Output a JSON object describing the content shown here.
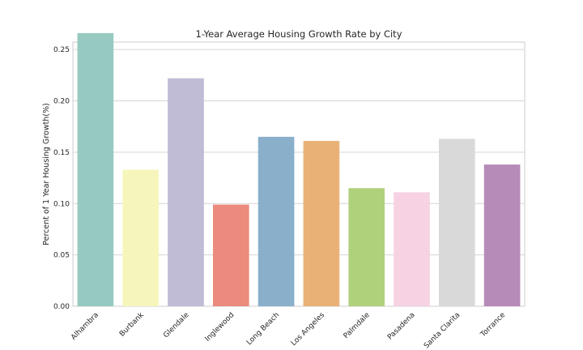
{
  "chart_data": {
    "type": "bar",
    "title": "1-Year Average Housing Growth Rate by City",
    "xlabel": "",
    "ylabel": "Percent of 1 Year Housing Growth(%)",
    "categories": [
      "Alhambra",
      "Burbank",
      "Glendale",
      "Inglewood",
      "Long Beach",
      "Los Angeles",
      "Palmdale",
      "Pasadena",
      "Santa Clarita",
      "Torrance"
    ],
    "values": [
      0.266,
      0.133,
      0.222,
      0.099,
      0.165,
      0.161,
      0.115,
      0.111,
      0.163,
      0.138
    ],
    "colors": [
      "#96cac1",
      "#f6f6bc",
      "#c0bcd6",
      "#ea8b7d",
      "#8aafca",
      "#eab176",
      "#afd17c",
      "#f6d2e3",
      "#d9d9d9",
      "#b68bb7"
    ],
    "ylim": [
      0,
      0.2572
    ],
    "yticks": [
      0.0,
      0.05,
      0.1,
      0.15,
      0.2,
      0.25
    ],
    "ytick_labels": [
      "0.00",
      "0.05",
      "0.10",
      "0.15",
      "0.20",
      "0.25"
    ],
    "grid": true,
    "style": "seaborn-whitegrid"
  }
}
